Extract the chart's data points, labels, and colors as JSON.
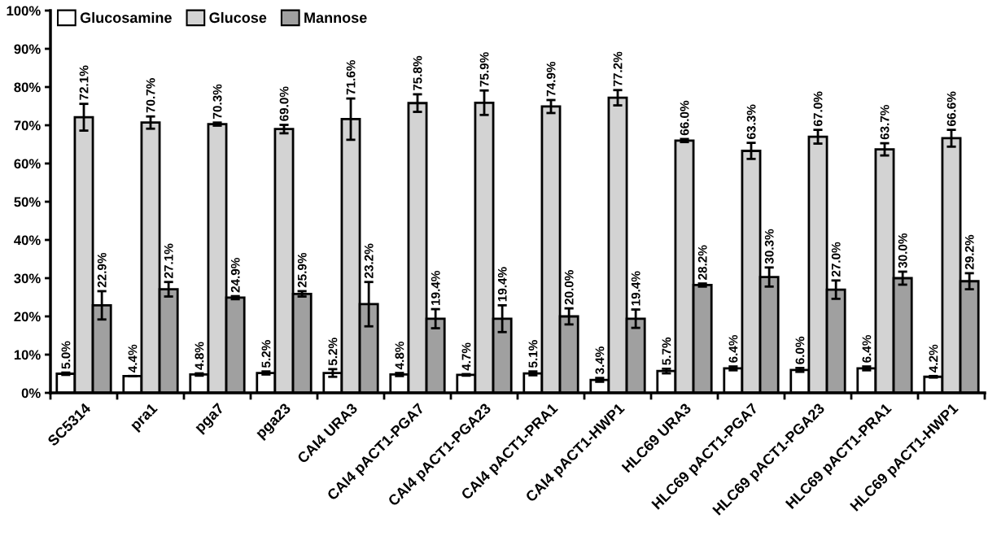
{
  "chart_data": {
    "type": "bar",
    "categories": [
      "SC5314",
      "pra1",
      "pga7",
      "pga23",
      "CAI4 URA3",
      "CAI4 pACT1-PGA7",
      "CAI4 pACT1-PGA23",
      "CAI4 pACT1-PRA1",
      "CAI4 pACT1-HWP1",
      "HLC69 URA3",
      "HLC69 pACT1-PGA7",
      "HLC69 pACT1-PGA23",
      "HLC69 pACT1-PRA1",
      "HLC69 pACT1-HWP1"
    ],
    "series": [
      {
        "name": "Glucosamine",
        "color": "#ffffff",
        "values": [
          5.0,
          4.4,
          4.8,
          5.2,
          5.2,
          4.8,
          4.7,
          5.1,
          3.4,
          5.7,
          6.4,
          6.0,
          6.4,
          4.2
        ],
        "errors": [
          0.3,
          0.0,
          0.3,
          0.4,
          1.0,
          0.4,
          0.2,
          0.5,
          0.5,
          0.6,
          0.5,
          0.5,
          0.5,
          0.2
        ],
        "value_labels": [
          "5.0%",
          "4.4%",
          "4.8%",
          "5.2%",
          "5.2%",
          "4.8%",
          "4.7%",
          "5.1%",
          "3.4%",
          "5.7%",
          "6.4%",
          "6.0%",
          "6.4%",
          "4.2%"
        ]
      },
      {
        "name": "Glucose",
        "color": "#d3d3d3",
        "values": [
          72.1,
          70.7,
          70.3,
          69.0,
          71.6,
          75.8,
          75.9,
          74.9,
          77.2,
          66.0,
          63.3,
          67.0,
          63.7,
          66.6
        ],
        "errors": [
          3.5,
          1.6,
          0.4,
          1.1,
          5.4,
          2.3,
          3.2,
          1.7,
          2.0,
          0.4,
          2.1,
          1.8,
          1.6,
          2.2
        ],
        "value_labels": [
          "72.1%",
          "70.7%",
          "70.3%",
          "69.0%",
          "71.6%",
          "75.8%",
          "75.9%",
          "74.9%",
          "77.2%",
          "66.0%",
          "63.3%",
          "67.0%",
          "63.7%",
          "66.6%"
        ]
      },
      {
        "name": "Mannose",
        "color": "#a0a0a0",
        "values": [
          22.9,
          27.1,
          24.9,
          25.9,
          23.2,
          19.4,
          19.4,
          20.0,
          19.4,
          28.2,
          30.3,
          27.0,
          30.0,
          29.2
        ],
        "errors": [
          3.7,
          1.9,
          0.4,
          0.7,
          5.8,
          2.5,
          3.5,
          2.1,
          2.4,
          0.4,
          2.5,
          2.4,
          1.7,
          2.1
        ],
        "value_labels": [
          "22.9%",
          "27.1%",
          "24.9%",
          "25.9%",
          "23.2%",
          "19.4%",
          "19.4%",
          "20.0%",
          "19.4%",
          "28.2%",
          "30.3%",
          "27.0%",
          "30.0%",
          "29.2%"
        ]
      }
    ],
    "ylim": [
      0,
      100
    ],
    "yticks": [
      {
        "value": 0,
        "label": "0%"
      },
      {
        "value": 10,
        "label": "10%"
      },
      {
        "value": 20,
        "label": "20%"
      },
      {
        "value": 30,
        "label": "30%"
      },
      {
        "value": 40,
        "label": "40%"
      },
      {
        "value": 50,
        "label": "50%"
      },
      {
        "value": 60,
        "label": "60%"
      },
      {
        "value": 70,
        "label": "70%"
      },
      {
        "value": 80,
        "label": "80%"
      },
      {
        "value": 90,
        "label": "90%"
      },
      {
        "value": 100,
        "label": "100%"
      }
    ],
    "grid": false,
    "legend": "top left"
  }
}
